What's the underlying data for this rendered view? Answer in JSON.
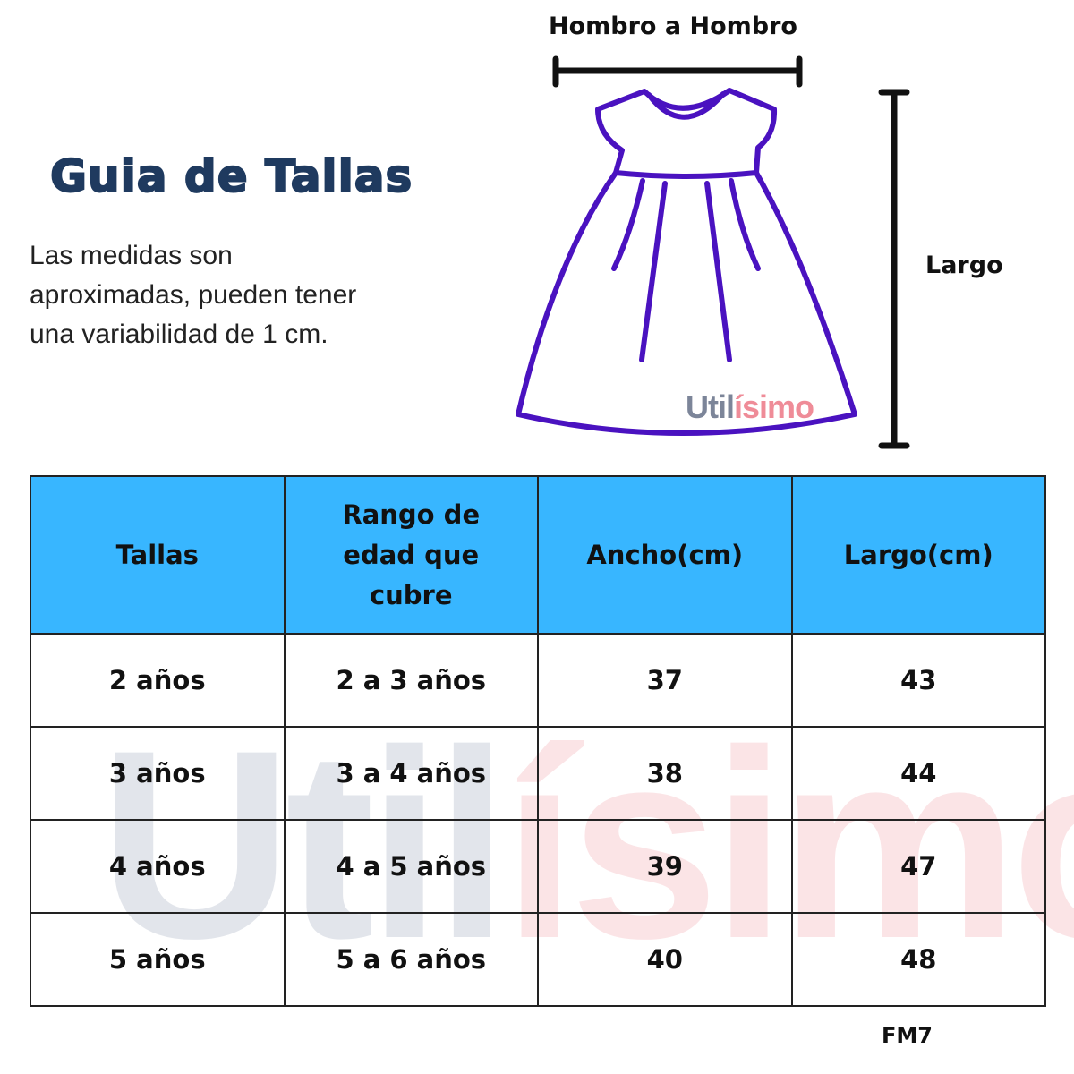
{
  "title": "Guia de Tallas",
  "description": "Las medidas son aproximadas, pueden tener una variabilidad de 1 cm.",
  "labels": {
    "shoulder": "Hombro a Hombro",
    "length": "Largo"
  },
  "brand": {
    "part1": "Util",
    "part2": "ísimo",
    "color1": "#7c8599",
    "color2": "#ef8c98"
  },
  "colors": {
    "header": "#38b6ff",
    "title": "#1f3a5f",
    "dress": "#4a12c0"
  },
  "table": {
    "headers": [
      "Tallas",
      "Rango de edad que cubre",
      "Ancho(cm)",
      "Largo(cm)"
    ],
    "rows": [
      [
        "2 años",
        "2 a 3 años",
        "37",
        "43"
      ],
      [
        "3 años",
        "3 a 4 años",
        "38",
        "44"
      ],
      [
        "4 años",
        "4 a 5 años",
        "39",
        "47"
      ],
      [
        "5 años",
        "5 a 6 años",
        "40",
        "48"
      ]
    ]
  },
  "code": "FM7"
}
